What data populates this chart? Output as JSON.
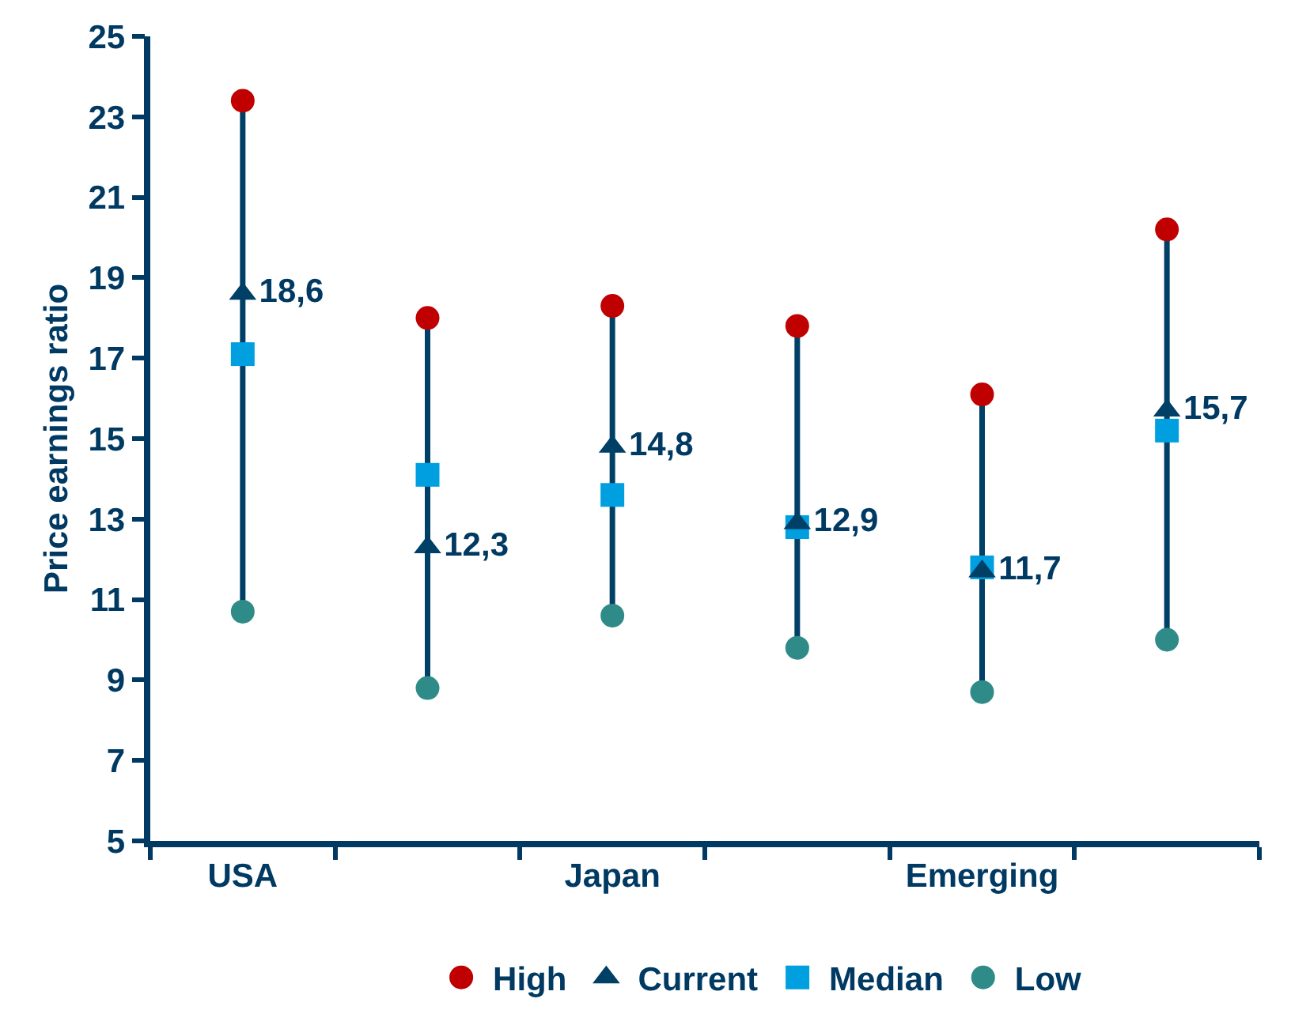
{
  "chart_data": {
    "type": "scatter",
    "ylabel": "Price earnings ratio",
    "categories": [
      "USA",
      null,
      "Japan",
      null,
      "Emerging",
      null
    ],
    "series": [
      {
        "name": "High",
        "color": "#c00000",
        "marker": "circle",
        "values": [
          23.4,
          18.0,
          18.3,
          17.8,
          16.1,
          20.2
        ]
      },
      {
        "name": "Current",
        "color": "#003f66",
        "marker": "triangle",
        "values": [
          18.6,
          12.3,
          14.8,
          12.9,
          11.7,
          15.7
        ],
        "value_labels": [
          "18,6",
          "12,3",
          "14,8",
          "12,9",
          "11,7",
          "15,7"
        ]
      },
      {
        "name": "Median",
        "color": "#00a0e0",
        "marker": "square",
        "values": [
          17.1,
          14.1,
          13.6,
          12.8,
          11.8,
          15.2
        ]
      },
      {
        "name": "Low",
        "color": "#2e8b87",
        "marker": "circle",
        "values": [
          10.7,
          8.8,
          10.6,
          9.8,
          8.7,
          10.0
        ]
      }
    ],
    "ylim": [
      5,
      25
    ],
    "yticks": [
      5,
      7,
      9,
      11,
      13,
      15,
      17,
      19,
      21,
      23,
      25
    ],
    "legend": "bottom"
  }
}
